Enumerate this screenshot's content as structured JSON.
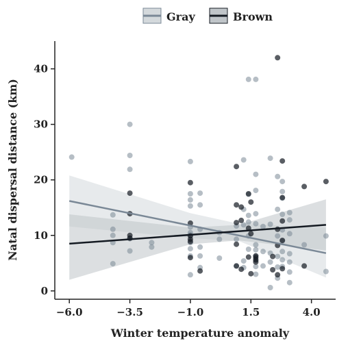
{
  "chart_data": {
    "type": "scatter",
    "xlabel": "Winter temperature anomaly",
    "ylabel": "Natal dispersal distance (km)",
    "xlim": [
      -6.6,
      5.0
    ],
    "ylim": [
      -1.5,
      45
    ],
    "xticks": [
      -6.0,
      -3.5,
      -1.0,
      1.5,
      4.0
    ],
    "xtick_labels": [
      "−6.0",
      "−3.5",
      "−1.0",
      "1.5",
      "4.0"
    ],
    "yticks": [
      0,
      10,
      20,
      30,
      40
    ],
    "yticks_labels": [
      "0",
      "10",
      "20",
      "30",
      "40"
    ],
    "legend": {
      "position": "top-center",
      "entries": [
        "Gray",
        "Brown"
      ]
    },
    "grid": false,
    "series": [
      {
        "name": "Gray",
        "color": "#7a8896",
        "band_color": "#d4d9dc",
        "fit": {
          "x": [
            -6.0,
            4.6
          ],
          "y": [
            16.2,
            6.8
          ]
        },
        "band": {
          "x": [
            -6.0,
            -1.0,
            1.0,
            4.6
          ],
          "upper": [
            20.8,
            14.0,
            12.1,
            11.4
          ],
          "lower": [
            11.6,
            9.5,
            9.0,
            2.4
          ]
        },
        "points": [
          [
            -5.9,
            24.1
          ],
          [
            -3.5,
            30.0
          ],
          [
            -3.5,
            24.4
          ],
          [
            -3.5,
            21.9
          ],
          [
            -3.5,
            9.4
          ],
          [
            -3.5,
            7.2
          ],
          [
            -4.2,
            13.7
          ],
          [
            -4.2,
            11.1
          ],
          [
            -4.2,
            10.0
          ],
          [
            -4.2,
            8.7
          ],
          [
            -4.2,
            4.9
          ],
          [
            -2.6,
            8.7
          ],
          [
            -2.6,
            7.9
          ],
          [
            -1.0,
            23.3
          ],
          [
            -1.0,
            17.5
          ],
          [
            -1.0,
            16.4
          ],
          [
            -1.0,
            15.3
          ],
          [
            -1.0,
            11.5
          ],
          [
            -1.0,
            10.5
          ],
          [
            -1.0,
            10.1
          ],
          [
            -1.0,
            8.7
          ],
          [
            -1.0,
            7.6
          ],
          [
            -1.0,
            6.3
          ],
          [
            -1.0,
            2.9
          ],
          [
            -0.6,
            17.6
          ],
          [
            -0.6,
            15.5
          ],
          [
            -0.6,
            11.1
          ],
          [
            -0.6,
            7.9
          ],
          [
            -0.6,
            6.3
          ],
          [
            -0.6,
            4.2
          ],
          [
            0.2,
            10.5
          ],
          [
            0.2,
            9.3
          ],
          [
            0.2,
            5.9
          ],
          [
            0.9,
            11.7
          ],
          [
            0.9,
            9.3
          ],
          [
            0.9,
            4.5
          ],
          [
            1.2,
            23.6
          ],
          [
            1.2,
            14.7
          ],
          [
            1.2,
            11.9
          ],
          [
            1.2,
            5.4
          ],
          [
            1.2,
            4.2
          ],
          [
            1.4,
            38.1
          ],
          [
            1.4,
            17.4
          ],
          [
            1.4,
            13.6
          ],
          [
            1.4,
            12.4
          ],
          [
            1.4,
            9.9
          ],
          [
            1.4,
            7.5
          ],
          [
            1.7,
            38.1
          ],
          [
            1.7,
            21.0
          ],
          [
            1.7,
            18.1
          ],
          [
            1.7,
            13.9
          ],
          [
            1.7,
            12.1
          ],
          [
            1.7,
            8.3
          ],
          [
            1.7,
            7.4
          ],
          [
            1.7,
            6.3
          ],
          [
            1.7,
            5.5
          ],
          [
            1.7,
            4.4
          ],
          [
            1.7,
            3.0
          ],
          [
            2.0,
            11.6
          ],
          [
            2.0,
            7.1
          ],
          [
            2.0,
            4.5
          ],
          [
            2.3,
            23.9
          ],
          [
            2.3,
            12.0
          ],
          [
            2.3,
            6.8
          ],
          [
            2.3,
            5.2
          ],
          [
            2.3,
            0.6
          ],
          [
            2.6,
            20.6
          ],
          [
            2.6,
            14.7
          ],
          [
            2.6,
            9.9
          ],
          [
            2.6,
            6.2
          ],
          [
            2.6,
            4.3
          ],
          [
            2.6,
            2.3
          ],
          [
            2.8,
            19.7
          ],
          [
            2.8,
            17.9
          ],
          [
            2.8,
            16.7
          ],
          [
            2.8,
            13.8
          ],
          [
            2.8,
            11.0
          ],
          [
            2.8,
            9.0
          ],
          [
            2.8,
            7.1
          ],
          [
            2.8,
            5.6
          ],
          [
            2.8,
            4.4
          ],
          [
            3.1,
            14.1
          ],
          [
            3.1,
            12.8
          ],
          [
            3.1,
            10.3
          ],
          [
            3.1,
            6.7
          ],
          [
            3.1,
            5.2
          ],
          [
            3.1,
            3.4
          ],
          [
            3.1,
            1.5
          ],
          [
            3.7,
            8.3
          ],
          [
            4.6,
            9.9
          ],
          [
            4.6,
            3.5
          ]
        ]
      },
      {
        "name": "Brown",
        "color": "#141a22",
        "band_color": "#c0c5c9",
        "fit": {
          "x": [
            -6.0,
            4.6
          ],
          "y": [
            8.5,
            11.9
          ]
        },
        "band": {
          "x": [
            -6.0,
            -1.0,
            1.0,
            4.6
          ],
          "upper": [
            13.8,
            11.4,
            11.9,
            16.5
          ],
          "lower": [
            2.0,
            8.4,
            9.1,
            7.3
          ]
        },
        "points": [
          [
            -3.5,
            17.6
          ],
          [
            -3.5,
            13.9
          ],
          [
            -3.5,
            10.0
          ],
          [
            -3.5,
            9.5
          ],
          [
            -1.0,
            19.5
          ],
          [
            -1.0,
            12.2
          ],
          [
            -1.0,
            9.9
          ],
          [
            -1.0,
            9.3
          ],
          [
            -1.0,
            8.9
          ],
          [
            -1.0,
            6.0
          ],
          [
            -0.6,
            3.6
          ],
          [
            0.9,
            22.4
          ],
          [
            0.9,
            15.5
          ],
          [
            0.9,
            12.3
          ],
          [
            0.9,
            8.4
          ],
          [
            0.9,
            4.5
          ],
          [
            1.1,
            15.1
          ],
          [
            1.1,
            12.7
          ],
          [
            1.1,
            3.9
          ],
          [
            1.4,
            17.5
          ],
          [
            1.4,
            11.3
          ],
          [
            1.4,
            6.1
          ],
          [
            1.5,
            16.0
          ],
          [
            1.5,
            10.3
          ],
          [
            1.5,
            3.1
          ],
          [
            1.7,
            6.3
          ],
          [
            1.7,
            6.0
          ],
          [
            1.7,
            5.6
          ],
          [
            1.7,
            5.2
          ],
          [
            2.4,
            3.8
          ],
          [
            2.4,
            6.2
          ],
          [
            2.6,
            42.0
          ],
          [
            2.6,
            11.1
          ],
          [
            2.6,
            8.2
          ],
          [
            2.6,
            2.9
          ],
          [
            2.8,
            23.4
          ],
          [
            2.8,
            16.8
          ],
          [
            2.8,
            12.6
          ],
          [
            2.8,
            9.1
          ],
          [
            2.8,
            4.0
          ],
          [
            3.7,
            18.8
          ],
          [
            3.7,
            4.5
          ],
          [
            4.6,
            19.7
          ]
        ]
      }
    ]
  }
}
